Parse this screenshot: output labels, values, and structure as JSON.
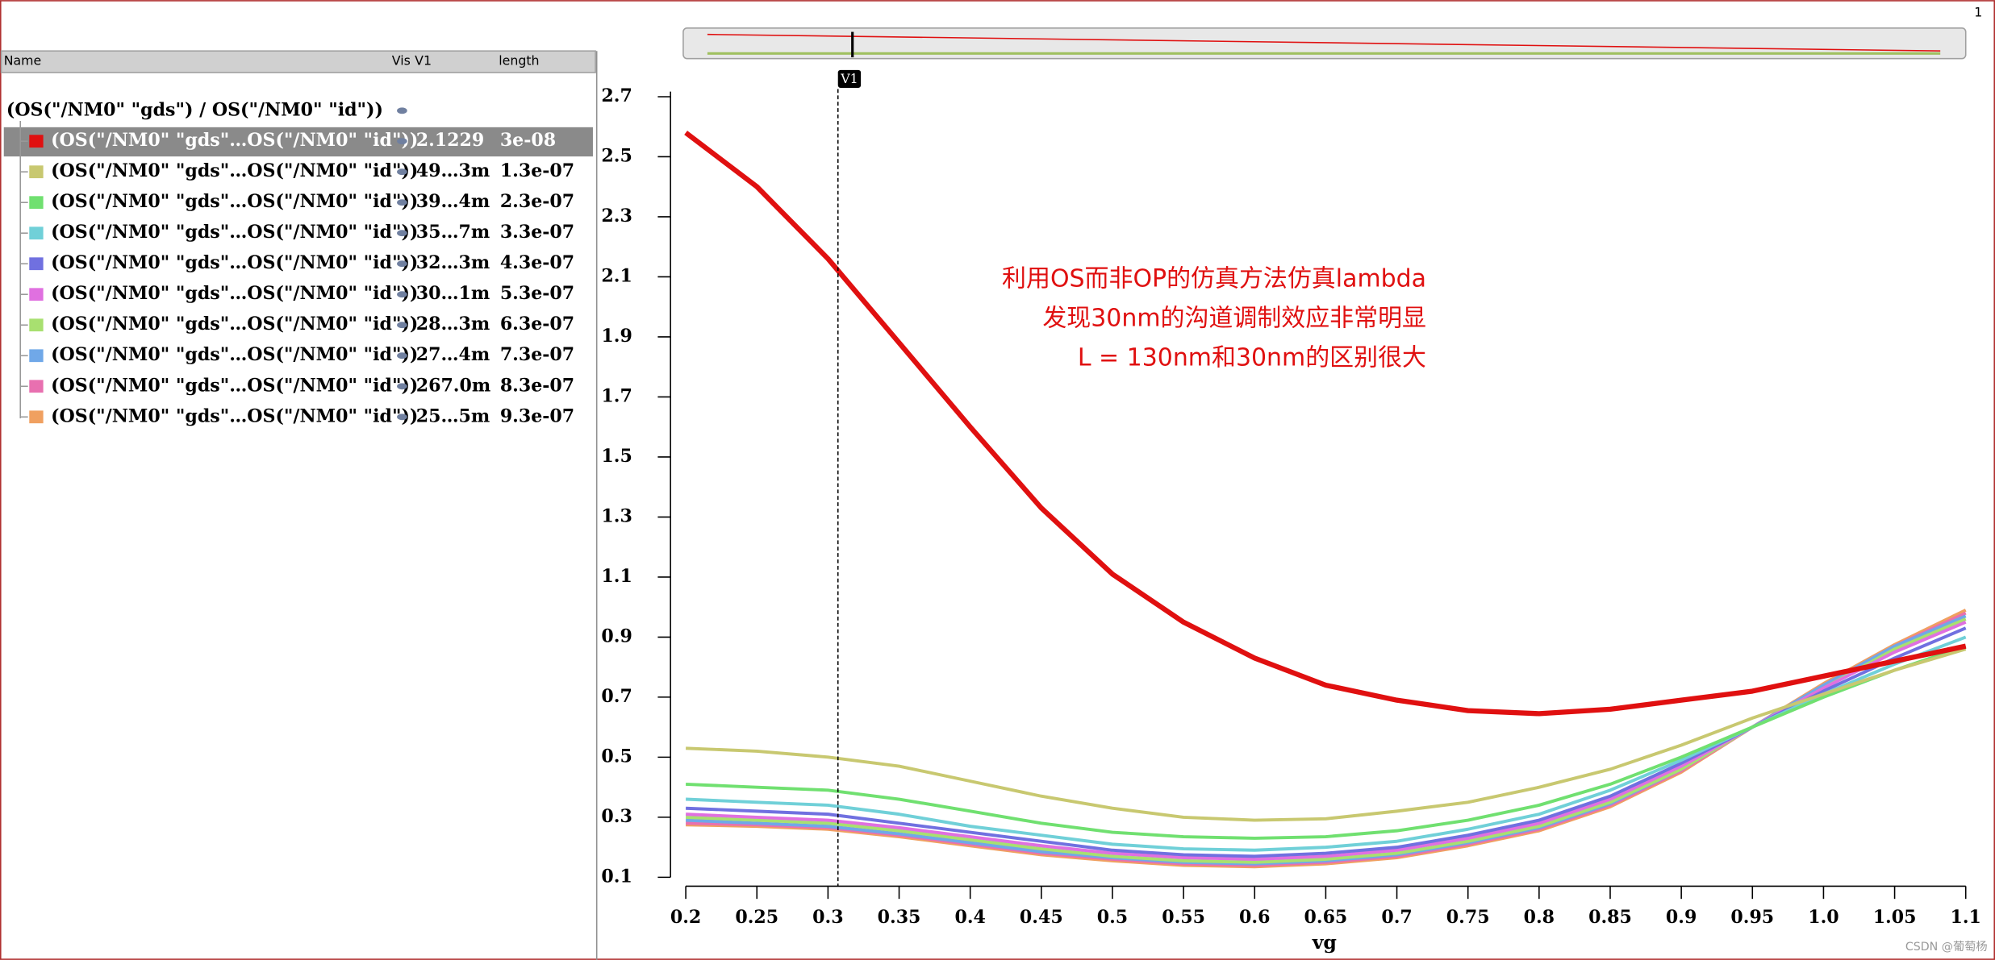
{
  "panel": {
    "headers": [
      "Name",
      "Vis",
      "V1",
      "length"
    ],
    "group": "(OS(\"/NM0\" \"gds\") / OS(\"/NM0\" \"id\"))",
    "rows": [
      {
        "name": "(OS(\"/NM0\" \"gds\"…OS(\"/NM0\" \"id\"))",
        "v1": "2.1229",
        "length": "3e-08"
      },
      {
        "name": "(OS(\"/NM0\" \"gds\"…OS(\"/NM0\" \"id\"))",
        "v1": "49…3m",
        "length": "1.3e-07"
      },
      {
        "name": "(OS(\"/NM0\" \"gds\"…OS(\"/NM0\" \"id\"))",
        "v1": "39…4m",
        "length": "2.3e-07"
      },
      {
        "name": "(OS(\"/NM0\" \"gds\"…OS(\"/NM0\" \"id\"))",
        "v1": "35…7m",
        "length": "3.3e-07"
      },
      {
        "name": "(OS(\"/NM0\" \"gds\"…OS(\"/NM0\" \"id\"))",
        "v1": "32…3m",
        "length": "4.3e-07"
      },
      {
        "name": "(OS(\"/NM0\" \"gds\"…OS(\"/NM0\" \"id\"))",
        "v1": "30…1m",
        "length": "5.3e-07"
      },
      {
        "name": "(OS(\"/NM0\" \"gds\"…OS(\"/NM0\" \"id\"))",
        "v1": "28…3m",
        "length": "6.3e-07"
      },
      {
        "name": "(OS(\"/NM0\" \"gds\"…OS(\"/NM0\" \"id\"))",
        "v1": "27…4m",
        "length": "7.3e-07"
      },
      {
        "name": "(OS(\"/NM0\" \"gds\"…OS(\"/NM0\" \"id\"))",
        "v1": "267.0m",
        "length": "8.3e-07"
      },
      {
        "name": "(OS(\"/NM0\" \"gds\"…OS(\"/NM0\" \"id\"))",
        "v1": "25…5m",
        "length": "9.3e-07"
      }
    ]
  },
  "page_number": "1",
  "watermark": "CSDN @葡萄杨",
  "chart_data": {
    "type": "line",
    "x_label": "vg",
    "annotations": [
      "利用OS而非OP的仿真方法仿真lambda",
      "发现30nm的沟道调制效应非常明显",
      "L = 130nm和30nm的区别很大"
    ],
    "cursor": {
      "label": "V1",
      "x": 0.307
    },
    "x": [
      0.2,
      0.25,
      0.3,
      0.35,
      0.4,
      0.45,
      0.5,
      0.55,
      0.6,
      0.65,
      0.7,
      0.75,
      0.8,
      0.85,
      0.9,
      0.95,
      1.0,
      1.05,
      1.1
    ],
    "xlim": [
      0.2,
      1.1
    ],
    "xticks": [
      0.2,
      0.25,
      0.3,
      0.35,
      0.4,
      0.45,
      0.5,
      0.55,
      0.6,
      0.65,
      0.7,
      0.75,
      0.8,
      0.85,
      0.9,
      0.95,
      {
        "value": 1,
        "label": "1.0"
      },
      1.05,
      1.1
    ],
    "ylim": [
      0.1,
      2.7
    ],
    "yticks": [
      0.1,
      0.3,
      0.5,
      0.7,
      0.9,
      1.1,
      1.3,
      1.5,
      1.7,
      1.9,
      2.1,
      2.3,
      2.5,
      2.7
    ],
    "series": [
      {
        "color": "#e01010",
        "values": [
          2.58,
          2.4,
          2.16,
          1.88,
          1.6,
          1.33,
          1.11,
          0.95,
          0.83,
          0.74,
          0.69,
          0.655,
          0.645,
          0.66,
          0.69,
          0.72,
          0.77,
          0.82,
          0.87
        ]
      },
      {
        "color": "#c8c870",
        "values": [
          0.53,
          0.52,
          0.5,
          0.47,
          0.42,
          0.37,
          0.33,
          0.3,
          0.29,
          0.295,
          0.32,
          0.35,
          0.4,
          0.46,
          0.54,
          0.63,
          0.71,
          0.79,
          0.86
        ]
      },
      {
        "color": "#70e070",
        "values": [
          0.41,
          0.4,
          0.39,
          0.36,
          0.32,
          0.28,
          0.25,
          0.235,
          0.23,
          0.235,
          0.255,
          0.29,
          0.34,
          0.41,
          0.5,
          0.6,
          0.7,
          0.79,
          0.87
        ]
      },
      {
        "color": "#70d0d8",
        "values": [
          0.36,
          0.35,
          0.34,
          0.31,
          0.27,
          0.24,
          0.21,
          0.195,
          0.19,
          0.2,
          0.22,
          0.26,
          0.31,
          0.39,
          0.49,
          0.6,
          0.71,
          0.81,
          0.9
        ]
      },
      {
        "color": "#7070e0",
        "values": [
          0.33,
          0.32,
          0.31,
          0.28,
          0.25,
          0.22,
          0.19,
          0.175,
          0.17,
          0.18,
          0.2,
          0.24,
          0.29,
          0.37,
          0.48,
          0.6,
          0.72,
          0.83,
          0.93
        ]
      },
      {
        "color": "#e070e0",
        "values": [
          0.31,
          0.3,
          0.29,
          0.265,
          0.235,
          0.205,
          0.18,
          0.165,
          0.16,
          0.17,
          0.19,
          0.23,
          0.28,
          0.36,
          0.47,
          0.6,
          0.73,
          0.85,
          0.95
        ]
      },
      {
        "color": "#a8e070",
        "values": [
          0.3,
          0.29,
          0.28,
          0.255,
          0.225,
          0.195,
          0.17,
          0.155,
          0.15,
          0.16,
          0.18,
          0.22,
          0.27,
          0.35,
          0.46,
          0.6,
          0.73,
          0.86,
          0.96
        ]
      },
      {
        "color": "#70a8e8",
        "values": [
          0.29,
          0.28,
          0.27,
          0.245,
          0.215,
          0.185,
          0.165,
          0.15,
          0.145,
          0.155,
          0.175,
          0.215,
          0.265,
          0.345,
          0.46,
          0.6,
          0.74,
          0.87,
          0.97
        ]
      },
      {
        "color": "#e870b0",
        "values": [
          0.28,
          0.275,
          0.265,
          0.24,
          0.21,
          0.18,
          0.16,
          0.145,
          0.14,
          0.15,
          0.17,
          0.21,
          0.26,
          0.34,
          0.455,
          0.6,
          0.74,
          0.87,
          0.98
        ]
      },
      {
        "color": "#f0a060",
        "values": [
          0.275,
          0.27,
          0.26,
          0.235,
          0.205,
          0.175,
          0.155,
          0.14,
          0.135,
          0.145,
          0.165,
          0.205,
          0.255,
          0.335,
          0.45,
          0.6,
          0.745,
          0.875,
          0.99
        ]
      }
    ]
  }
}
